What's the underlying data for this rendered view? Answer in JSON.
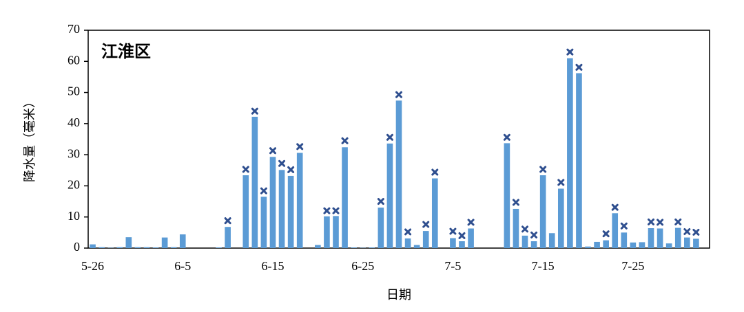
{
  "chart_data": {
    "type": "bar",
    "title": "江淮区",
    "xlabel": "日期",
    "ylabel": "降水量（毫米）",
    "categories": [
      "5-26",
      null,
      null,
      null,
      null,
      null,
      null,
      null,
      null,
      null,
      "6-5",
      null,
      null,
      null,
      null,
      null,
      null,
      null,
      null,
      null,
      "6-15",
      null,
      null,
      null,
      null,
      null,
      null,
      null,
      null,
      null,
      "6-25",
      null,
      null,
      null,
      null,
      null,
      null,
      null,
      null,
      null,
      "7-5",
      null,
      null,
      null,
      null,
      null,
      null,
      null,
      null,
      null,
      "7-15",
      null,
      null,
      null,
      null,
      null,
      null,
      null,
      null,
      null,
      "7-25",
      null,
      null,
      null,
      null,
      null,
      null,
      null,
      null
    ],
    "series": [
      {
        "color": "#5b9bd5",
        "marker": "bar",
        "values": [
          1.2,
          0.3,
          0.1,
          0.3,
          3.5,
          0.3,
          0.3,
          0.2,
          3.4,
          0.3,
          4.4,
          0,
          0,
          0,
          0.2,
          6.8,
          0,
          23.4,
          42.2,
          16.5,
          29.3,
          25.1,
          23.2,
          30.6,
          0,
          1.0,
          10.2,
          10.3,
          32.4,
          0.2,
          0.1,
          0.2,
          13,
          33.6,
          47.4,
          3.1,
          1.0,
          5.5,
          22.4,
          0,
          3.2,
          2.2,
          6.3,
          0,
          0,
          0,
          33.7,
          12.6,
          4.0,
          2.2,
          23.4,
          4.8,
          19.1,
          61,
          56.2,
          0.5,
          2.0,
          2.5,
          11.2,
          5.0,
          1.8,
          1.9,
          6.4,
          6.3,
          1.5,
          6.5,
          3.4,
          3.0,
          0
        ]
      },
      {
        "color": "#2f4f8f",
        "marker": "x",
        "values": [
          null,
          null,
          null,
          null,
          null,
          null,
          null,
          null,
          null,
          null,
          null,
          null,
          null,
          null,
          null,
          8.8,
          null,
          25.3,
          44,
          18.4,
          31.3,
          27.2,
          25.2,
          32.6,
          null,
          null,
          12,
          12,
          34.5,
          null,
          null,
          null,
          15,
          35.6,
          49.3,
          5.2,
          null,
          7.6,
          24.4,
          null,
          5.4,
          4.0,
          8.3,
          null,
          null,
          null,
          35.6,
          14.7,
          6.1,
          4.2,
          25.3,
          null,
          21.1,
          63,
          58.1,
          null,
          null,
          4.6,
          13.1,
          7.1,
          null,
          null,
          8.4,
          8.3,
          null,
          8.4,
          5.3,
          5.1,
          null
        ]
      }
    ],
    "ylim": [
      0,
      70
    ],
    "yticks": [
      0,
      10,
      20,
      30,
      40,
      50,
      60,
      70
    ],
    "grid": false
  }
}
